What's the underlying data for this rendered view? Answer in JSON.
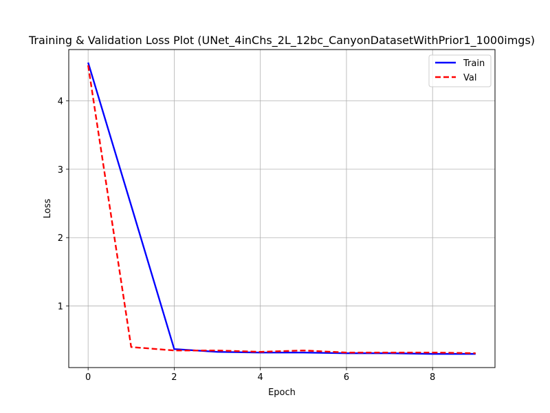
{
  "chart_data": {
    "type": "line",
    "title": "Training & Validation Loss Plot (UNet_4inChs_2L_12bc_CanyonDatasetWithPrior1_1000imgs)",
    "xlabel": "Epoch",
    "ylabel": "Loss",
    "xlim": [
      -0.45,
      9.45
    ],
    "ylim": [
      0.1,
      4.75
    ],
    "xticks": [
      0,
      2,
      4,
      6,
      8
    ],
    "yticks": [
      1,
      2,
      3,
      4
    ],
    "grid": true,
    "legend_position": "top-right",
    "x": [
      0,
      1,
      2,
      3,
      4,
      5,
      6,
      7,
      8,
      9
    ],
    "series": [
      {
        "name": "Train",
        "color": "#0000ff",
        "style": "solid",
        "values": [
          4.56,
          2.47,
          0.37,
          0.33,
          0.32,
          0.32,
          0.31,
          0.31,
          0.3,
          0.3
        ]
      },
      {
        "name": "Val",
        "color": "#ff0000",
        "style": "dashed",
        "values": [
          4.52,
          0.4,
          0.35,
          0.35,
          0.33,
          0.35,
          0.32,
          0.32,
          0.32,
          0.31
        ]
      }
    ]
  }
}
